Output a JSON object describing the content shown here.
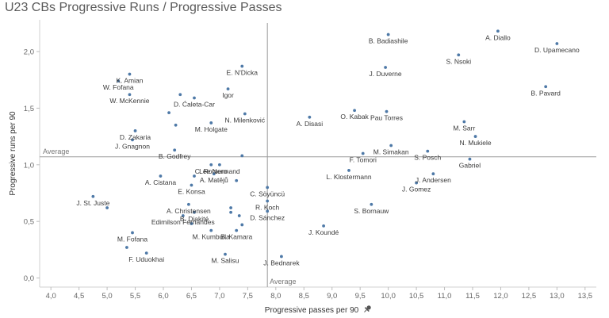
{
  "title": "U23 CBs Progressive Runs / Progressive Passes",
  "pin_icon": "pin-icon",
  "chart_data": {
    "type": "scatter",
    "title": "U23 CBs Progressive Runs / Progressive Passes",
    "xlabel": "Progressive passes per 90",
    "ylabel": "Progressive runs per 90",
    "xlim": [
      3.8,
      13.7
    ],
    "ylim": [
      -0.08,
      2.28
    ],
    "xticks": [
      "4,0",
      "4,5",
      "5,0",
      "5,5",
      "6,0",
      "6,5",
      "7,0",
      "7,5",
      "8,0",
      "8,5",
      "9,0",
      "9,5",
      "10,0",
      "10,5",
      "11,0",
      "11,5",
      "12,0",
      "12,5",
      "13,0",
      "13,5"
    ],
    "xtick_values": [
      4.0,
      4.5,
      5.0,
      5.5,
      6.0,
      6.5,
      7.0,
      7.5,
      8.0,
      8.5,
      9.0,
      9.5,
      10.0,
      10.5,
      11.0,
      11.5,
      12.0,
      12.5,
      13.0,
      13.5
    ],
    "yticks": [
      "0,0",
      "0,5",
      "1,0",
      "1,5",
      "2,0"
    ],
    "ytick_values": [
      0.0,
      0.5,
      1.0,
      1.5,
      2.0
    ],
    "average_x": 7.85,
    "average_y": 1.07,
    "average_label": "Average",
    "grid": false,
    "marker_color": "#4e79a7",
    "points": [
      {
        "label": "A. Diallo",
        "x": 11.95,
        "y": 2.18
      },
      {
        "label": "D. Upamecano",
        "x": 13.0,
        "y": 2.07
      },
      {
        "label": "B. Badiashile",
        "x": 10.0,
        "y": 2.15
      },
      {
        "label": "S. Nsoki",
        "x": 11.25,
        "y": 1.97
      },
      {
        "label": "J. Duverne",
        "x": 9.95,
        "y": 1.86
      },
      {
        "label": "B. Pavard",
        "x": 12.8,
        "y": 1.69
      },
      {
        "label": "Pau Torres",
        "x": 9.97,
        "y": 1.47
      },
      {
        "label": "O. Kabak",
        "x": 9.4,
        "y": 1.48
      },
      {
        "label": "A. Disasi",
        "x": 8.6,
        "y": 1.42
      },
      {
        "label": "M. Sarr",
        "x": 11.35,
        "y": 1.38
      },
      {
        "label": "N. Mukiele",
        "x": 11.55,
        "y": 1.25
      },
      {
        "label": "M. Simakan",
        "x": 10.05,
        "y": 1.17
      },
      {
        "label": "S. Posch",
        "x": 10.7,
        "y": 1.12
      },
      {
        "label": "F. Tomori",
        "x": 9.55,
        "y": 1.1
      },
      {
        "label": "Gabriel",
        "x": 11.45,
        "y": 1.05
      },
      {
        "label": "L. Klostermann",
        "x": 9.3,
        "y": 0.95
      },
      {
        "label": "J. Andersen",
        "x": 10.8,
        "y": 0.92
      },
      {
        "label": "J. Gomez",
        "x": 10.5,
        "y": 0.84
      },
      {
        "label": "S. Bornauw",
        "x": 9.7,
        "y": 0.65
      },
      {
        "label": "J. Koundé",
        "x": 8.85,
        "y": 0.46
      },
      {
        "label": "J. Bednarek",
        "x": 8.1,
        "y": 0.19
      },
      {
        "label": "C. Söyüncü",
        "x": 7.85,
        "y": 0.8
      },
      {
        "label": "R. Koch",
        "x": 7.85,
        "y": 0.68
      },
      {
        "label": "D. Sánchez",
        "x": 7.85,
        "y": 0.59
      },
      {
        "label": "M. Salisu",
        "x": 7.1,
        "y": 0.21
      },
      {
        "label": "B. Kamara",
        "x": 7.3,
        "y": 0.42
      },
      {
        "label": "M. Kumbulla",
        "x": 6.85,
        "y": 0.42
      },
      {
        "label": "Edimilson Fernandes",
        "x": 6.35,
        "y": 0.55
      },
      {
        "label": "A. Christensen",
        "x": 6.45,
        "y": 0.65
      },
      {
        "label": "B. Diakité",
        "x": 6.55,
        "y": 0.58
      },
      {
        "label": "E. Konsa",
        "x": 6.5,
        "y": 0.82
      },
      {
        "label": "A. Cistana",
        "x": 5.95,
        "y": 0.9
      },
      {
        "label": "A. Matějů",
        "x": 6.9,
        "y": 0.92
      },
      {
        "label": "C. Romero",
        "x": 6.85,
        "y": 1.0
      },
      {
        "label": "Lee Normand",
        "x": 7.0,
        "y": 1.0
      },
      {
        "label": "B. Godfrey",
        "x": 6.2,
        "y": 1.13
      },
      {
        "label": "J. Gnagnon",
        "x": 5.45,
        "y": 1.22
      },
      {
        "label": "D. Zakaria",
        "x": 5.5,
        "y": 1.3
      },
      {
        "label": "M. Holgate",
        "x": 6.85,
        "y": 1.37
      },
      {
        "label": "D. Ćaleta-Car",
        "x": 6.55,
        "y": 1.59
      },
      {
        "label": "N. Milenković",
        "x": 7.45,
        "y": 1.45
      },
      {
        "label": "Igor",
        "x": 7.15,
        "y": 1.67
      },
      {
        "label": "E. N'Dicka",
        "x": 7.4,
        "y": 1.87
      },
      {
        "label": "K. Amian",
        "x": 5.4,
        "y": 1.8
      },
      {
        "label": "W. Fofana",
        "x": 5.2,
        "y": 1.74
      },
      {
        "label": "W. McKennie",
        "x": 5.4,
        "y": 1.62
      },
      {
        "label": "J. St. Juste",
        "x": 4.75,
        "y": 0.72
      },
      {
        "label": "M. Fofana",
        "x": 5.45,
        "y": 0.4
      },
      {
        "label": "F. Uduokhai",
        "x": 5.7,
        "y": 0.22
      },
      {
        "label": "",
        "x": 6.3,
        "y": 1.62
      },
      {
        "label": "",
        "x": 6.1,
        "y": 1.46
      },
      {
        "label": "",
        "x": 6.22,
        "y": 1.35
      },
      {
        "label": "",
        "x": 5.0,
        "y": 0.62
      },
      {
        "label": "",
        "x": 5.35,
        "y": 0.27
      },
      {
        "label": "",
        "x": 7.2,
        "y": 0.62
      },
      {
        "label": "",
        "x": 7.35,
        "y": 0.55
      },
      {
        "label": "",
        "x": 7.4,
        "y": 0.47
      },
      {
        "label": "",
        "x": 7.2,
        "y": 0.58
      },
      {
        "label": "",
        "x": 6.55,
        "y": 0.9
      },
      {
        "label": "",
        "x": 6.5,
        "y": 0.48
      },
      {
        "label": "",
        "x": 7.3,
        "y": 0.86
      },
      {
        "label": "",
        "x": 7.4,
        "y": 1.08
      }
    ]
  }
}
